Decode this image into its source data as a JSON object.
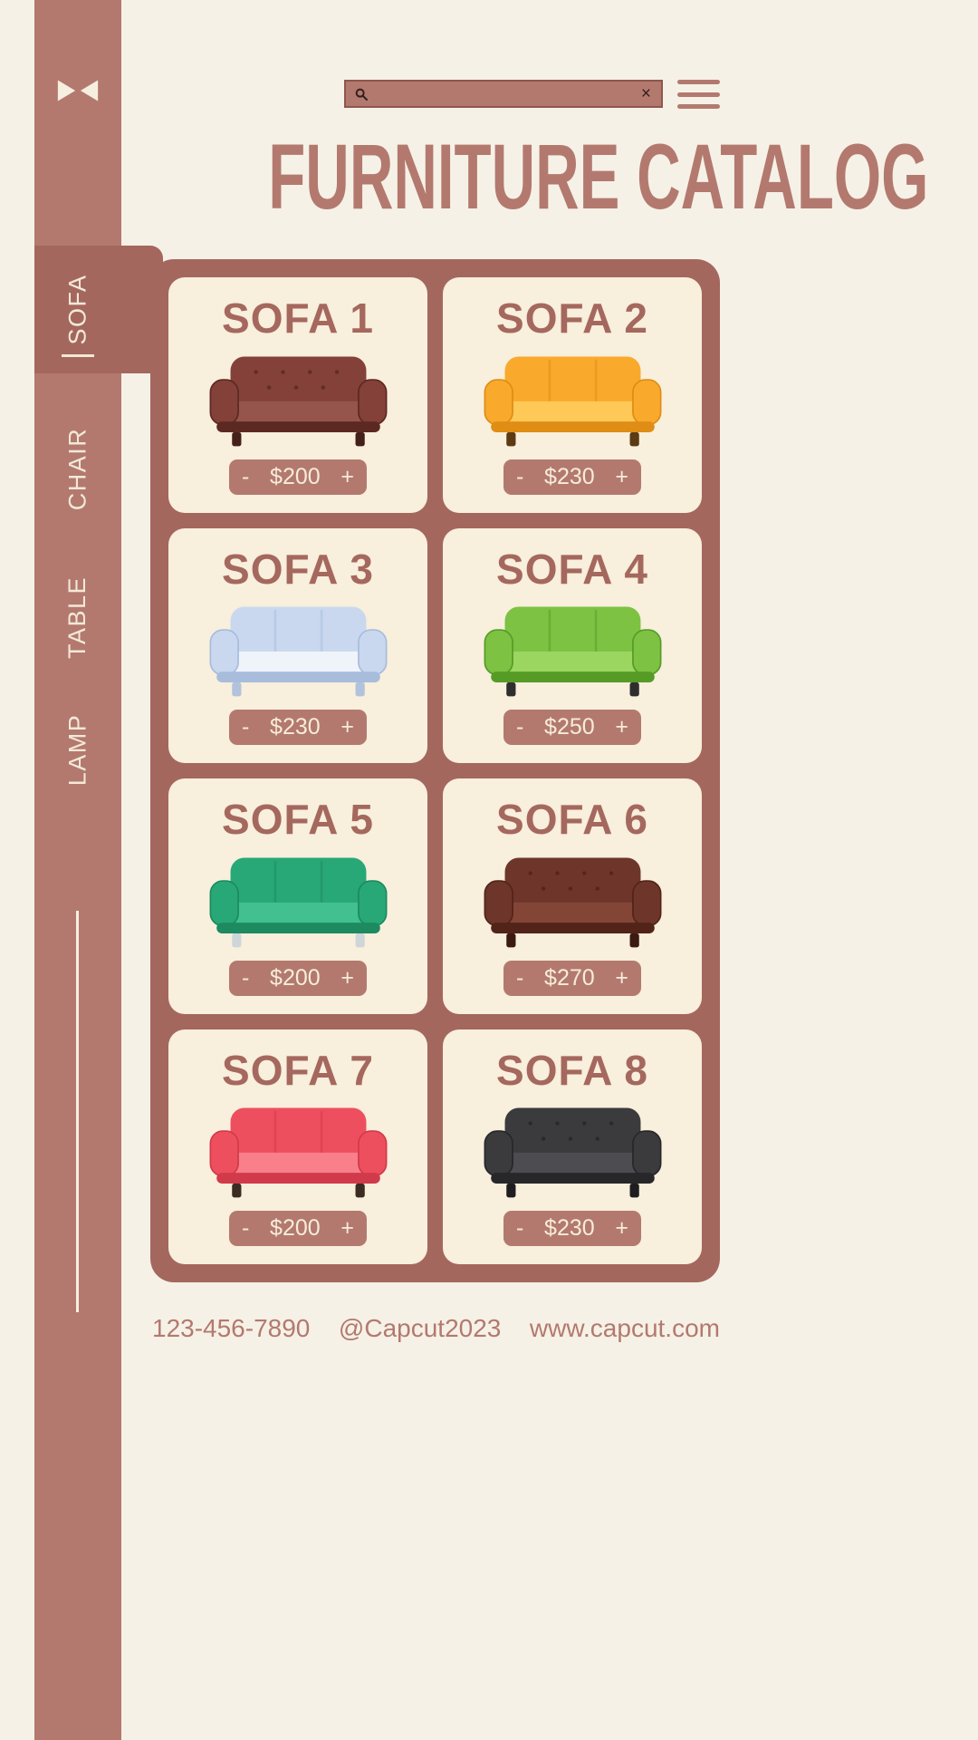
{
  "colors": {
    "background": "#f6f1e6",
    "sidebar": "#b3796f",
    "panel": "#a4675e",
    "card": "#f8efdc",
    "accent": "#b3796f",
    "pill_text": "#f6ecd9"
  },
  "topbar": {
    "search": {
      "value": "",
      "placeholder": "",
      "icon": "search-icon",
      "clear_label": "×",
      "clear_icon": "clear-icon"
    },
    "menu_icon": "hamburger-icon"
  },
  "header": {
    "title": "FURNITURE CATALOG"
  },
  "sidebar": {
    "logo_icon": "capcut-logo-icon",
    "items": [
      {
        "label": "SOFA",
        "active": true
      },
      {
        "label": "CHAIR",
        "active": false
      },
      {
        "label": "TABLE",
        "active": false
      },
      {
        "label": "LAMP",
        "active": false
      }
    ]
  },
  "catalog": {
    "cards": [
      {
        "title": "SOFA 1",
        "price": "$200",
        "decrease": "-",
        "increase": "+",
        "palette": {
          "main": "#83413a",
          "light": "#96554c",
          "dark": "#5c2922",
          "leg": "#45201b",
          "tufted": true
        }
      },
      {
        "title": "SOFA 2",
        "price": "$230",
        "decrease": "-",
        "increase": "+",
        "palette": {
          "main": "#f9a92c",
          "light": "#ffc957",
          "dark": "#df8d14",
          "leg": "#5b3a14"
        }
      },
      {
        "title": "SOFA 3",
        "price": "$230",
        "decrease": "-",
        "increase": "+",
        "palette": {
          "main": "#c9d8ef",
          "light": "#eff4fb",
          "dark": "#a8bcdc",
          "leg": "#b2c2dd"
        }
      },
      {
        "title": "SOFA 4",
        "price": "$250",
        "decrease": "-",
        "increase": "+",
        "palette": {
          "main": "#7dc242",
          "light": "#9bd661",
          "dark": "#579b27",
          "leg": "#2e2e2e"
        }
      },
      {
        "title": "SOFA 5",
        "price": "$200",
        "decrease": "-",
        "increase": "+",
        "palette": {
          "main": "#28a877",
          "light": "#42c08f",
          "dark": "#1d8a5f",
          "leg": "#cfd6da"
        }
      },
      {
        "title": "SOFA 6",
        "price": "$270",
        "decrease": "-",
        "increase": "+",
        "palette": {
          "main": "#6e362a",
          "light": "#834536",
          "dark": "#522318",
          "leg": "#3b1a11",
          "tufted": true
        }
      },
      {
        "title": "SOFA 7",
        "price": "$200",
        "decrease": "-",
        "increase": "+",
        "palette": {
          "main": "#ee4f5e",
          "light": "#f97f8a",
          "dark": "#d13a4a",
          "leg": "#3b2b23"
        }
      },
      {
        "title": "SOFA 8",
        "price": "$230",
        "decrease": "-",
        "increase": "+",
        "palette": {
          "main": "#3b3b3e",
          "light": "#4d4d51",
          "dark": "#27272a",
          "leg": "#1e1e21",
          "tufted": true
        }
      }
    ]
  },
  "footer": {
    "phone": "123-456-7890",
    "handle": "@Capcut2023",
    "website": "www.capcut.com"
  }
}
